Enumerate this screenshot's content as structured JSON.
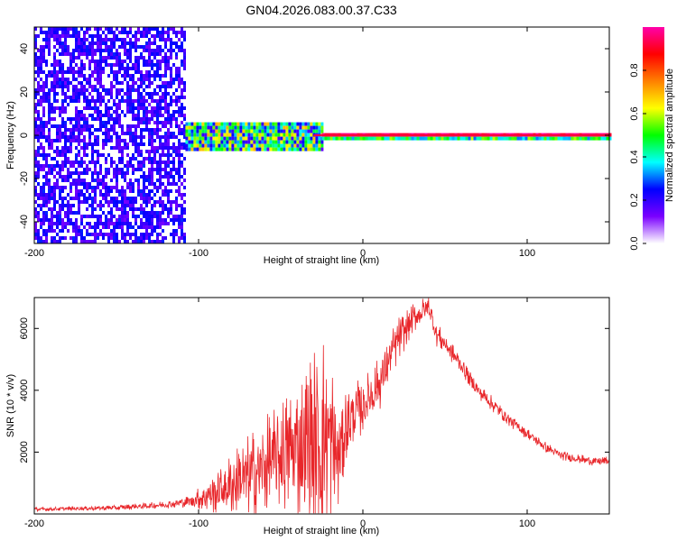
{
  "title": "GN04.2026.083.00.37.C33",
  "colors": {
    "signal_line": "#e8262a",
    "grid": "#aaaaaa",
    "frame": "#000000"
  },
  "chart_data": [
    {
      "type": "heatmap",
      "name": "spectrogram",
      "xlabel": "Height of straight line (km)",
      "ylabel": "Frequency (Hz)",
      "xlim": [
        -200,
        150
      ],
      "ylim": [
        -50,
        50
      ],
      "xticks": [
        -200,
        -100,
        0,
        100
      ],
      "yticks": [
        -40,
        -20,
        0,
        20,
        40
      ],
      "colorbar": {
        "label": "Normalized spectral amplitude",
        "range": [
          0,
          1
        ],
        "ticks": [
          0.0,
          0.2,
          0.4,
          0.6,
          0.8
        ],
        "tick_labels": [
          "0.0",
          "0.2",
          "0.4",
          "0.6",
          "0.8"
        ],
        "colormap": [
          "#ffffff",
          "#7a00ff",
          "#0000ff",
          "#00ffff",
          "#00ff00",
          "#ffff00",
          "#ff8000",
          "#ff0000",
          "#ff00aa"
        ]
      },
      "regions": [
        {
          "x_range": [
            -200,
            -108
          ],
          "freq_range": [
            -50,
            50
          ],
          "amplitude": 0.15,
          "description_level": "noise"
        },
        {
          "x_range": [
            -108,
            -25
          ],
          "freq_range": [
            -6,
            6
          ],
          "amplitude": 0.45,
          "description_level": "broadband signal"
        },
        {
          "x_range": [
            -25,
            150
          ],
          "freq_range": [
            -1,
            1
          ],
          "amplitude": 0.95,
          "description_level": "narrow carrier"
        }
      ],
      "carrier_frequency": 0
    },
    {
      "type": "line",
      "name": "snr",
      "xlabel": "Height of straight line (km)",
      "ylabel": "SNR (10 * v/v)",
      "xlim": [
        -200,
        150
      ],
      "ylim": [
        0,
        7000
      ],
      "xticks": [
        -200,
        -100,
        0,
        100
      ],
      "yticks": [
        2000,
        4000,
        6000
      ],
      "series": [
        {
          "name": "SNR",
          "color": "#e8262a",
          "x": [
            -200,
            -150,
            -120,
            -105,
            -90,
            -75,
            -60,
            -50,
            -40,
            -30,
            -22,
            -15,
            -10,
            0,
            10,
            20,
            30,
            40,
            45,
            50,
            60,
            70,
            80,
            90,
            100,
            110,
            120,
            130,
            140,
            150
          ],
          "y": [
            150,
            200,
            300,
            400,
            700,
            1100,
            1500,
            1900,
            2100,
            2200,
            2600,
            1800,
            3000,
            3500,
            4200,
            5500,
            6300,
            6700,
            5800,
            5500,
            4800,
            4000,
            3500,
            3000,
            2600,
            2200,
            1900,
            1800,
            1700,
            1700
          ],
          "spread": [
            60,
            80,
            120,
            200,
            700,
            1200,
            1600,
            1900,
            2200,
            3200,
            3500,
            2000,
            1200,
            900,
            900,
            800,
            500,
            400,
            400,
            350,
            300,
            250,
            250,
            200,
            200,
            180,
            150,
            150,
            150,
            150
          ]
        }
      ]
    }
  ]
}
